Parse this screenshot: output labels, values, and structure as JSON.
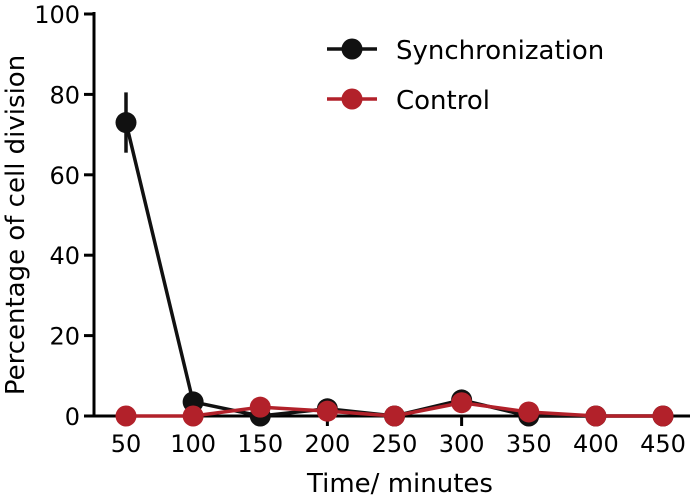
{
  "chart_data": {
    "type": "line",
    "title": "",
    "xlabel": "Time/ minutes",
    "ylabel": "Percentage of cell division",
    "x": [
      50,
      100,
      150,
      200,
      250,
      300,
      350,
      400,
      450
    ],
    "xticks": [
      "50",
      "100",
      "150",
      "200",
      "250",
      "300",
      "350",
      "400",
      "450"
    ],
    "ylim": [
      0,
      100
    ],
    "yticks": [
      "0",
      "20",
      "40",
      "60",
      "80",
      "100"
    ],
    "grid": false,
    "legend_position": "top-right",
    "series": [
      {
        "name": "Synchronization",
        "color": "#111111",
        "marker": "circle",
        "values": [
          73,
          3.5,
          0,
          1.8,
          0,
          4,
          0,
          0,
          0
        ],
        "error": [
          7.5,
          0,
          0,
          0,
          0,
          0,
          0,
          0,
          0
        ]
      },
      {
        "name": "Control",
        "color": "#b2212a",
        "marker": "circle",
        "values": [
          0,
          0,
          2.2,
          1.2,
          0,
          3.3,
          1,
          0,
          0
        ],
        "error": [
          0,
          0,
          0,
          0,
          0,
          0,
          0,
          0,
          0
        ]
      }
    ]
  }
}
